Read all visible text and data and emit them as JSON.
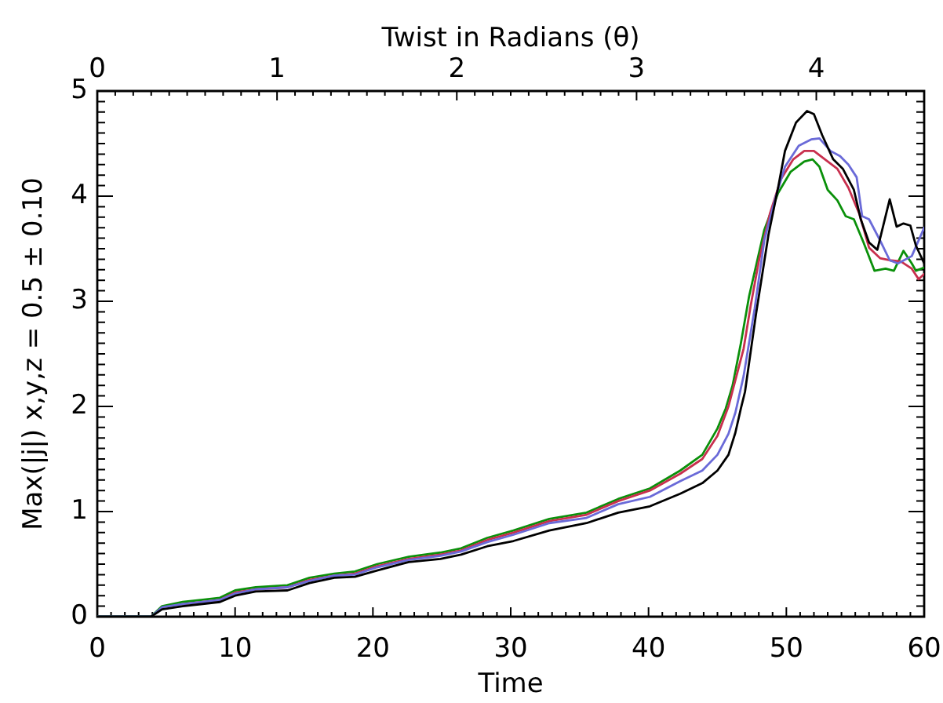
{
  "chart_data": {
    "type": "line",
    "xlabel": "Time",
    "ylabel": "Max(|j|) x,y,z = 0.5 ± 0.10",
    "x2label": "Twist in Radians (θ)",
    "xlim": [
      0,
      60
    ],
    "ylim": [
      0,
      5
    ],
    "x2lim": [
      0,
      4.6
    ],
    "xticks": [
      0,
      {
        "value": 1,
        "label": null
      },
      {
        "value": 2,
        "label": null
      },
      {
        "value": 3,
        "label": null
      },
      {
        "value": 4,
        "label": null
      },
      {
        "value": 5,
        "label": null
      },
      {
        "value": 6,
        "label": null
      },
      {
        "value": 7,
        "label": null
      },
      {
        "value": 8,
        "label": null
      },
      {
        "value": 9,
        "label": null
      },
      10,
      {
        "value": 11,
        "label": null
      },
      {
        "value": 12,
        "label": null
      },
      {
        "value": 13,
        "label": null
      },
      {
        "value": 14,
        "label": null
      },
      {
        "value": 15,
        "label": null
      },
      {
        "value": 16,
        "label": null
      },
      {
        "value": 17,
        "label": null
      },
      {
        "value": 18,
        "label": null
      },
      {
        "value": 19,
        "label": null
      },
      20,
      {
        "value": 21,
        "label": null
      },
      {
        "value": 22,
        "label": null
      },
      {
        "value": 23,
        "label": null
      },
      {
        "value": 24,
        "label": null
      },
      {
        "value": 25,
        "label": null
      },
      {
        "value": 26,
        "label": null
      },
      {
        "value": 27,
        "label": null
      },
      {
        "value": 28,
        "label": null
      },
      {
        "value": 29,
        "label": null
      },
      30,
      {
        "value": 31,
        "label": null
      },
      {
        "value": 32,
        "label": null
      },
      {
        "value": 33,
        "label": null
      },
      {
        "value": 34,
        "label": null
      },
      {
        "value": 35,
        "label": null
      },
      {
        "value": 36,
        "label": null
      },
      {
        "value": 37,
        "label": null
      },
      {
        "value": 38,
        "label": null
      },
      {
        "value": 39,
        "label": null
      },
      40,
      {
        "value": 41,
        "label": null
      },
      {
        "value": 42,
        "label": null
      },
      {
        "value": 43,
        "label": null
      },
      {
        "value": 44,
        "label": null
      },
      {
        "value": 45,
        "label": null
      },
      {
        "value": 46,
        "label": null
      },
      {
        "value": 47,
        "label": null
      },
      {
        "value": 48,
        "label": null
      },
      {
        "value": 49,
        "label": null
      },
      50,
      {
        "value": 51,
        "label": null
      },
      {
        "value": 52,
        "label": null
      },
      {
        "value": 53,
        "label": null
      },
      {
        "value": 54,
        "label": null
      },
      {
        "value": 55,
        "label": null
      },
      {
        "value": 56,
        "label": null
      },
      {
        "value": 57,
        "label": null
      },
      {
        "value": 58,
        "label": null
      },
      {
        "value": 59,
        "label": null
      },
      60
    ],
    "yticks": [
      0,
      {
        "value": 0.1,
        "label": null
      },
      {
        "value": 0.2,
        "label": null
      },
      {
        "value": 0.3,
        "label": null
      },
      {
        "value": 0.4,
        "label": null
      },
      {
        "value": 0.5,
        "label": null
      },
      {
        "value": 0.6,
        "label": null
      },
      {
        "value": 0.7,
        "label": null
      },
      {
        "value": 0.8,
        "label": null
      },
      {
        "value": 0.9,
        "label": null
      },
      1,
      {
        "value": 1.1,
        "label": null
      },
      {
        "value": 1.2,
        "label": null
      },
      {
        "value": 1.3,
        "label": null
      },
      {
        "value": 1.4,
        "label": null
      },
      {
        "value": 1.5,
        "label": null
      },
      {
        "value": 1.6,
        "label": null
      },
      {
        "value": 1.7,
        "label": null
      },
      {
        "value": 1.8,
        "label": null
      },
      {
        "value": 1.9,
        "label": null
      },
      2,
      {
        "value": 2.1,
        "label": null
      },
      {
        "value": 2.2,
        "label": null
      },
      {
        "value": 2.3,
        "label": null
      },
      {
        "value": 2.4,
        "label": null
      },
      {
        "value": 2.5,
        "label": null
      },
      {
        "value": 2.6,
        "label": null
      },
      {
        "value": 2.7,
        "label": null
      },
      {
        "value": 2.8,
        "label": null
      },
      {
        "value": 2.9,
        "label": null
      },
      3,
      {
        "value": 3.1,
        "label": null
      },
      {
        "value": 3.2,
        "label": null
      },
      {
        "value": 3.3,
        "label": null
      },
      {
        "value": 3.4,
        "label": null
      },
      {
        "value": 3.5,
        "label": null
      },
      {
        "value": 3.6,
        "label": null
      },
      {
        "value": 3.7,
        "label": null
      },
      {
        "value": 3.8,
        "label": null
      },
      {
        "value": 3.9,
        "label": null
      },
      4,
      {
        "value": 4.1,
        "label": null
      },
      {
        "value": 4.2,
        "label": null
      },
      {
        "value": 4.3,
        "label": null
      },
      {
        "value": 4.4,
        "label": null
      },
      {
        "value": 4.5,
        "label": null
      },
      {
        "value": 4.6,
        "label": null
      },
      {
        "value": 4.7,
        "label": null
      },
      {
        "value": 4.8,
        "label": null
      },
      {
        "value": 4.9,
        "label": null
      },
      5
    ],
    "x2ticks": [
      0,
      {
        "value": 0.1,
        "label": null
      },
      {
        "value": 0.2,
        "label": null
      },
      {
        "value": 0.3,
        "label": null
      },
      {
        "value": 0.4,
        "label": null
      },
      {
        "value": 0.5,
        "label": null
      },
      {
        "value": 0.6,
        "label": null
      },
      {
        "value": 0.7,
        "label": null
      },
      {
        "value": 0.8,
        "label": null
      },
      {
        "value": 0.9,
        "label": null
      },
      1,
      {
        "value": 1.1,
        "label": null
      },
      {
        "value": 1.2,
        "label": null
      },
      {
        "value": 1.3,
        "label": null
      },
      {
        "value": 1.4,
        "label": null
      },
      {
        "value": 1.5,
        "label": null
      },
      {
        "value": 1.6,
        "label": null
      },
      {
        "value": 1.7,
        "label": null
      },
      {
        "value": 1.8,
        "label": null
      },
      {
        "value": 1.9,
        "label": null
      },
      2,
      {
        "value": 2.1,
        "label": null
      },
      {
        "value": 2.2,
        "label": null
      },
      {
        "value": 2.3,
        "label": null
      },
      {
        "value": 2.4,
        "label": null
      },
      {
        "value": 2.5,
        "label": null
      },
      {
        "value": 2.6,
        "label": null
      },
      {
        "value": 2.7,
        "label": null
      },
      {
        "value": 2.8,
        "label": null
      },
      {
        "value": 2.9,
        "label": null
      },
      3,
      {
        "value": 3.1,
        "label": null
      },
      {
        "value": 3.2,
        "label": null
      },
      {
        "value": 3.3,
        "label": null
      },
      {
        "value": 3.4,
        "label": null
      },
      {
        "value": 3.5,
        "label": null
      },
      {
        "value": 3.6,
        "label": null
      },
      {
        "value": 3.7,
        "label": null
      },
      {
        "value": 3.8,
        "label": null
      },
      {
        "value": 3.9,
        "label": null
      },
      4,
      {
        "value": 4.1,
        "label": null
      },
      {
        "value": 4.2,
        "label": null
      },
      {
        "value": 4.3,
        "label": null
      },
      {
        "value": 4.4,
        "label": null
      },
      {
        "value": 4.5,
        "label": null
      }
    ],
    "series": [
      {
        "color": "#000000",
        "x": [
          0,
          3.9,
          4.7,
          6.2,
          8.9,
          10,
          11.5,
          13.8,
          15.4,
          17.2,
          18.7,
          20.3,
          22.6,
          24.9,
          26.4,
          28.3,
          30.2,
          32.8,
          35.5,
          37.8,
          40.1,
          42.3,
          43.9,
          45,
          45.8,
          46.3,
          46.7,
          47,
          47.8,
          48.7,
          49.4,
          49.9,
          50.7,
          51.5,
          52,
          52.6,
          53.4,
          54.1,
          54.9,
          55.4,
          56,
          56.6,
          57.5,
          58,
          58.5,
          59,
          59.4,
          60
        ],
        "values": [
          0,
          0,
          0.07,
          0.1,
          0.14,
          0.2,
          0.24,
          0.25,
          0.32,
          0.37,
          0.38,
          0.44,
          0.52,
          0.55,
          0.59,
          0.67,
          0.72,
          0.82,
          0.89,
          0.99,
          1.05,
          1.17,
          1.27,
          1.39,
          1.54,
          1.75,
          1.98,
          2.14,
          2.88,
          3.63,
          4.08,
          4.43,
          4.7,
          4.81,
          4.78,
          4.58,
          4.35,
          4.26,
          4.06,
          3.78,
          3.56,
          3.49,
          3.97,
          3.71,
          3.74,
          3.72,
          3.53,
          3.36
        ]
      },
      {
        "color": "#6a6ad8",
        "x": [
          0,
          3.9,
          4.7,
          6.2,
          8.9,
          10,
          11.5,
          13.8,
          15.4,
          17.2,
          18.7,
          20.3,
          22.6,
          24.9,
          26.4,
          28.3,
          30.2,
          32.8,
          35.5,
          37.8,
          40.1,
          42.3,
          43.9,
          45,
          45.8,
          46.3,
          46.9,
          47.7,
          48.4,
          49.2,
          49.9,
          50.9,
          51.8,
          52.4,
          53.2,
          53.9,
          54.5,
          55.1,
          55.5,
          56,
          56.8,
          57.5,
          58.1,
          59.1,
          60
        ],
        "values": [
          0,
          0,
          0.09,
          0.12,
          0.16,
          0.22,
          0.26,
          0.28,
          0.34,
          0.39,
          0.4,
          0.47,
          0.54,
          0.58,
          0.62,
          0.71,
          0.78,
          0.89,
          0.94,
          1.07,
          1.14,
          1.29,
          1.39,
          1.54,
          1.74,
          1.94,
          2.29,
          2.93,
          3.58,
          3.98,
          4.28,
          4.48,
          4.54,
          4.55,
          4.43,
          4.38,
          4.3,
          4.18,
          3.81,
          3.78,
          3.58,
          3.39,
          3.36,
          3.43,
          3.7
        ]
      },
      {
        "color": "#c8304e",
        "x": [
          6.2,
          8.9,
          10,
          11.5,
          13.8,
          15.4,
          17.2,
          18.7,
          20.3,
          22.6,
          24.9,
          26.4,
          28.3,
          30.2,
          32.8,
          35.5,
          37.8,
          40.1,
          42.3,
          43.9,
          45,
          45.8,
          46.9,
          47.4,
          48,
          48.8,
          49.6,
          50.5,
          51.3,
          52,
          52.8,
          53.7,
          54.5,
          55.3,
          56,
          56.8,
          57.5,
          58.3,
          59.1,
          59.6,
          60
        ],
        "values": [
          0.12,
          0.16,
          0.23,
          0.26,
          0.28,
          0.35,
          0.39,
          0.41,
          0.48,
          0.55,
          0.59,
          0.63,
          0.73,
          0.8,
          0.91,
          0.97,
          1.1,
          1.2,
          1.36,
          1.5,
          1.72,
          2,
          2.55,
          2.95,
          3.38,
          3.83,
          4.16,
          4.35,
          4.43,
          4.43,
          4.35,
          4.26,
          4.08,
          3.83,
          3.51,
          3.41,
          3.39,
          3.38,
          3.31,
          3.21,
          3.26
        ]
      },
      {
        "color": "#0a900a",
        "x": [
          0,
          3.9,
          4.7,
          6.2,
          8.9,
          10,
          11.5,
          13.8,
          15.4,
          17.2,
          18.7,
          20.3,
          22.6,
          24.9,
          26.4,
          28.3,
          30.2,
          32.8,
          35.5,
          37.8,
          40.1,
          42.3,
          43.9,
          45,
          45.6,
          46.1,
          46.7,
          47.3,
          48.4,
          49.4,
          50.3,
          51.3,
          51.9,
          52.4,
          53,
          53.7,
          54.3,
          54.9,
          55.6,
          56.4,
          57.2,
          57.8,
          58.5,
          59.1,
          59.4,
          60
        ],
        "values": [
          0,
          0,
          0.1,
          0.14,
          0.18,
          0.25,
          0.28,
          0.3,
          0.37,
          0.41,
          0.43,
          0.5,
          0.57,
          0.61,
          0.65,
          0.75,
          0.82,
          0.93,
          0.99,
          1.12,
          1.22,
          1.39,
          1.54,
          1.79,
          1.98,
          2.2,
          2.6,
          3.05,
          3.68,
          4.03,
          4.23,
          4.33,
          4.35,
          4.28,
          4.06,
          3.96,
          3.81,
          3.78,
          3.56,
          3.29,
          3.31,
          3.29,
          3.48,
          3.36,
          3.29,
          3.32
        ]
      }
    ]
  }
}
